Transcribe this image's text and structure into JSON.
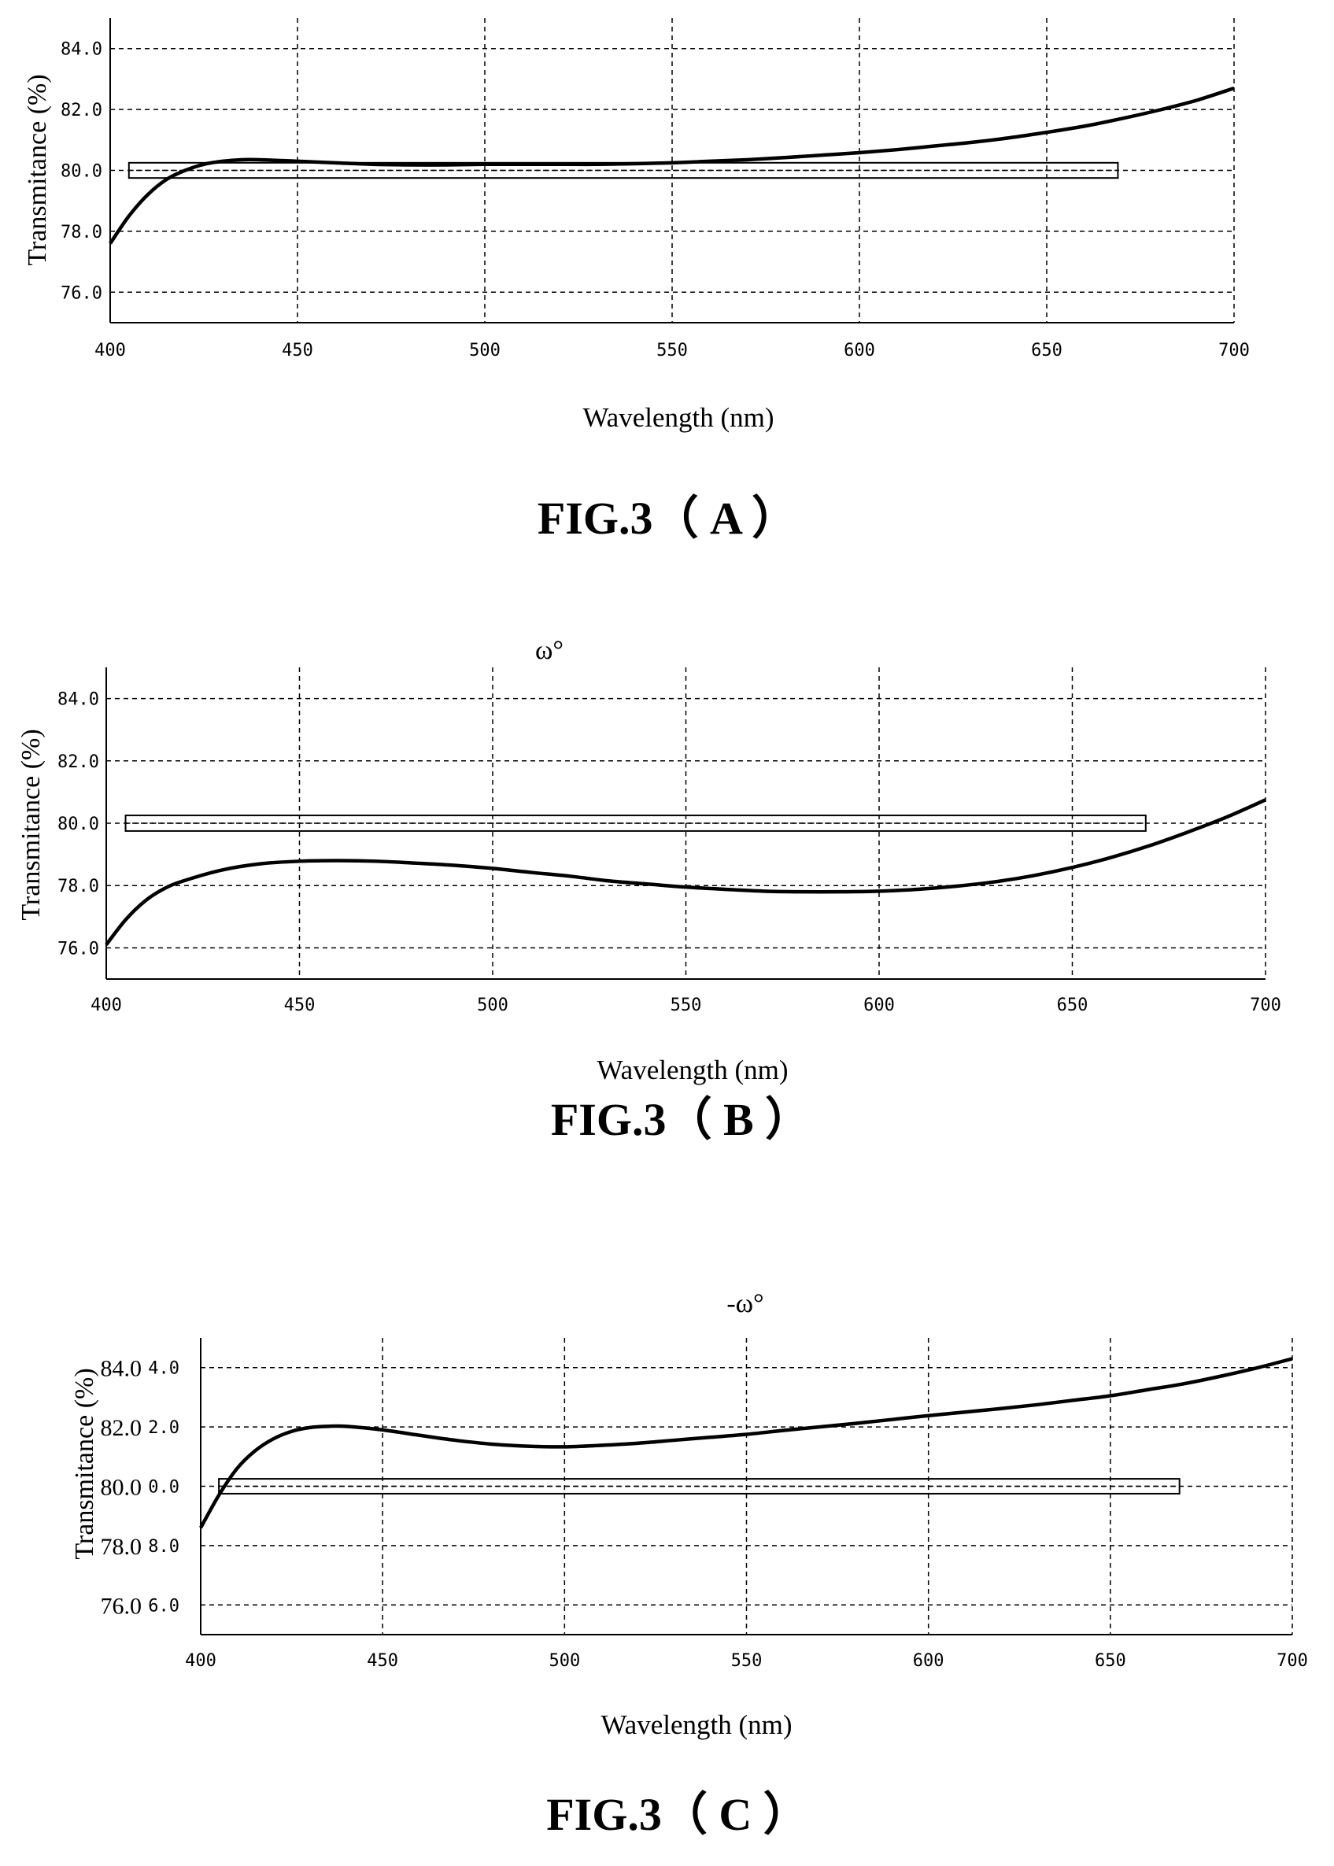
{
  "chart_data": [
    {
      "type": "line",
      "caption": "FIG.3（ A ）",
      "title": "",
      "xlabel": "Wavelength (nm)",
      "ylabel": "Transmitance (%)",
      "xlim": [
        400,
        700
      ],
      "ylim": [
        75,
        85
      ],
      "xticks": [
        400,
        450,
        500,
        550,
        600,
        650,
        700
      ],
      "yticks": [
        76,
        78,
        80,
        82,
        84
      ],
      "xtick_labels": [
        "400",
        "450",
        "500",
        "550",
        "600",
        "650",
        "700"
      ],
      "ytick_labels": [
        "76.0",
        "78.0",
        "80.0",
        "82.0",
        "84.0"
      ],
      "grid": true,
      "band": {
        "x": [
          405,
          669
        ],
        "y": [
          79.75,
          80.25
        ]
      },
      "series": [
        {
          "x": [
            400,
            405,
            410,
            415,
            420,
            425,
            430,
            435,
            440,
            450,
            460,
            470,
            480,
            490,
            500,
            510,
            520,
            530,
            540,
            550,
            560,
            570,
            580,
            590,
            600,
            610,
            620,
            630,
            640,
            650,
            660,
            670,
            680,
            690,
            700
          ],
          "y": [
            77.6,
            78.5,
            79.2,
            79.7,
            80.0,
            80.2,
            80.3,
            80.35,
            80.35,
            80.3,
            80.25,
            80.2,
            80.18,
            80.18,
            80.2,
            80.2,
            80.2,
            80.2,
            80.22,
            80.25,
            80.3,
            80.35,
            80.42,
            80.5,
            80.58,
            80.68,
            80.8,
            80.92,
            81.07,
            81.25,
            81.45,
            81.7,
            81.98,
            82.3,
            82.7
          ]
        }
      ]
    },
    {
      "type": "line",
      "caption": "FIG.3（ B ）",
      "title": "ω°",
      "xlabel": "Wavelength (nm)",
      "ylabel": "Transmitance (%)",
      "xlim": [
        400,
        700
      ],
      "ylim": [
        75,
        85
      ],
      "xticks": [
        400,
        450,
        500,
        550,
        600,
        650,
        700
      ],
      "yticks": [
        76,
        78,
        80,
        82,
        84
      ],
      "xtick_labels": [
        "400",
        "450",
        "500",
        "550",
        "600",
        "650",
        "700"
      ],
      "ytick_labels": [
        "76.0",
        "78.0",
        "80.0",
        "82.0",
        "84.0"
      ],
      "grid": true,
      "band": {
        "x": [
          405,
          669
        ],
        "y": [
          79.75,
          80.25
        ]
      },
      "series": [
        {
          "x": [
            400,
            405,
            410,
            415,
            420,
            430,
            440,
            450,
            460,
            470,
            480,
            490,
            500,
            510,
            520,
            530,
            540,
            550,
            560,
            570,
            580,
            590,
            600,
            610,
            620,
            630,
            640,
            650,
            660,
            670,
            680,
            690,
            700
          ],
          "y": [
            76.1,
            76.9,
            77.5,
            77.9,
            78.15,
            78.5,
            78.7,
            78.78,
            78.8,
            78.78,
            78.72,
            78.65,
            78.55,
            78.42,
            78.3,
            78.15,
            78.05,
            77.95,
            77.88,
            77.82,
            77.8,
            77.8,
            77.82,
            77.88,
            77.98,
            78.12,
            78.32,
            78.58,
            78.9,
            79.28,
            79.72,
            80.2,
            80.75
          ]
        }
      ]
    },
    {
      "type": "line",
      "caption": "FIG.3（ C ）",
      "title": "-ω°",
      "xlabel": "Wavelength (nm)",
      "ylabel": "Transmitance (%)",
      "xlim": [
        400,
        700
      ],
      "ylim": [
        75,
        85
      ],
      "xticks": [
        400,
        450,
        500,
        550,
        600,
        650,
        700
      ],
      "yticks": [
        76,
        78,
        80,
        82,
        84
      ],
      "xtick_labels": [
        "400",
        "450",
        "500",
        "550",
        "600",
        "650",
        "700"
      ],
      "ytick_labels": [
        "76.0",
        "78.0",
        "80.0",
        "82.0",
        "84.0"
      ],
      "ytick_labels_inner": [
        "6.0",
        "8.0",
        "0.0",
        "2.0",
        "4.0"
      ],
      "grid": true,
      "band": {
        "x": [
          405,
          669
        ],
        "y": [
          79.75,
          80.25
        ]
      },
      "series": [
        {
          "x": [
            400,
            405,
            410,
            415,
            420,
            425,
            430,
            435,
            440,
            450,
            460,
            470,
            480,
            490,
            500,
            510,
            520,
            530,
            540,
            550,
            560,
            570,
            580,
            590,
            600,
            610,
            620,
            630,
            640,
            650,
            660,
            670,
            680,
            690,
            700
          ],
          "y": [
            78.6,
            79.7,
            80.6,
            81.2,
            81.6,
            81.85,
            81.98,
            82.02,
            82.02,
            81.9,
            81.72,
            81.55,
            81.42,
            81.35,
            81.33,
            81.38,
            81.45,
            81.55,
            81.65,
            81.75,
            81.88,
            82.0,
            82.12,
            82.25,
            82.38,
            82.5,
            82.62,
            82.75,
            82.9,
            83.05,
            83.25,
            83.45,
            83.7,
            83.98,
            84.3
          ]
        }
      ]
    }
  ]
}
